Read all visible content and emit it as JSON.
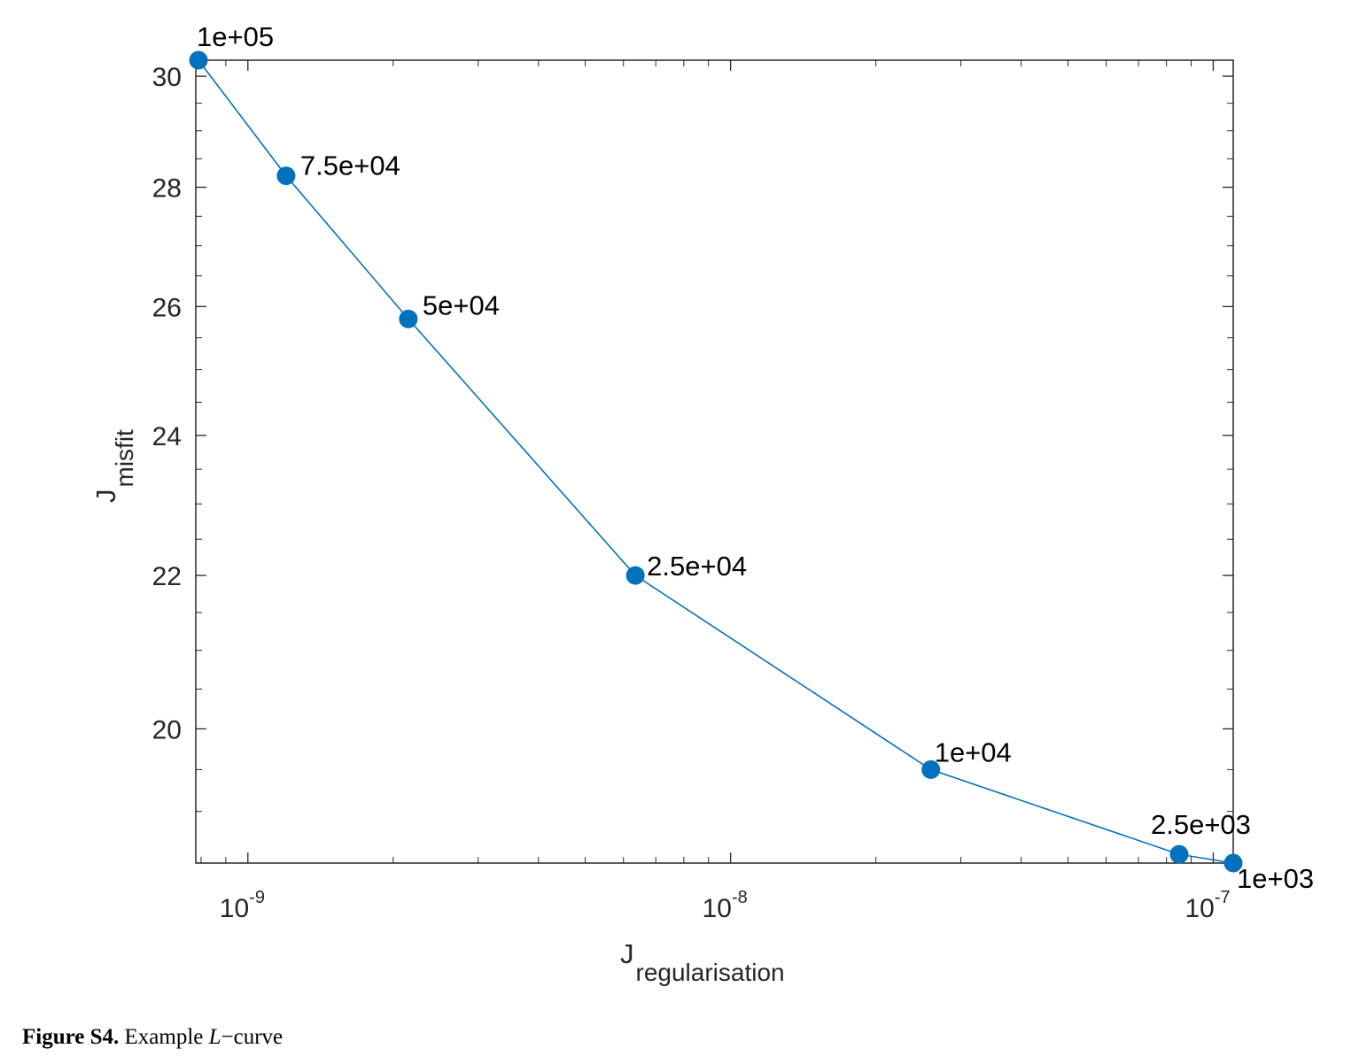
{
  "chart_data": {
    "type": "line",
    "x_scale": "log",
    "y_scale": "log",
    "xlim": [
      7.8e-10,
      1.1e-07
    ],
    "ylim": [
      18.4,
      30.3
    ],
    "xticks": [
      {
        "value": 1e-09,
        "base": "10",
        "exponent": "-9"
      },
      {
        "value": 1e-08,
        "base": "10",
        "exponent": "-8"
      },
      {
        "value": 1e-07,
        "base": "10",
        "exponent": "-7"
      }
    ],
    "yticks": [
      {
        "value": 20,
        "label": "20"
      },
      {
        "value": 22,
        "label": "22"
      },
      {
        "value": 24,
        "label": "24"
      },
      {
        "value": 26,
        "label": "26"
      },
      {
        "value": 28,
        "label": "28"
      },
      {
        "value": 30,
        "label": "30"
      }
    ],
    "xlabel": {
      "main": "J",
      "sub": "regularisation"
    },
    "ylabel": {
      "main": "J",
      "sub": "misfit"
    },
    "series": [
      {
        "color": "#0072BD",
        "points": [
          {
            "x": 7.9e-10,
            "y": 30.3,
            "label": "1e+05"
          },
          {
            "x": 1.2e-09,
            "y": 28.2,
            "label": "7.5e+04"
          },
          {
            "x": 2.15e-09,
            "y": 25.8,
            "label": "5e+04"
          },
          {
            "x": 6.35e-09,
            "y": 22.0,
            "label": "2.5e+04"
          },
          {
            "x": 2.6e-08,
            "y": 19.5,
            "label": "1e+04"
          },
          {
            "x": 8.5e-08,
            "y": 18.5,
            "label": "2.5e+03"
          },
          {
            "x": 1.1e-07,
            "y": 18.4,
            "label": "1e+03"
          }
        ]
      }
    ],
    "grid": false
  },
  "caption": {
    "bold": "Figure S4.",
    "text_before": " Example ",
    "math": "L",
    "text_after": "−curve"
  }
}
